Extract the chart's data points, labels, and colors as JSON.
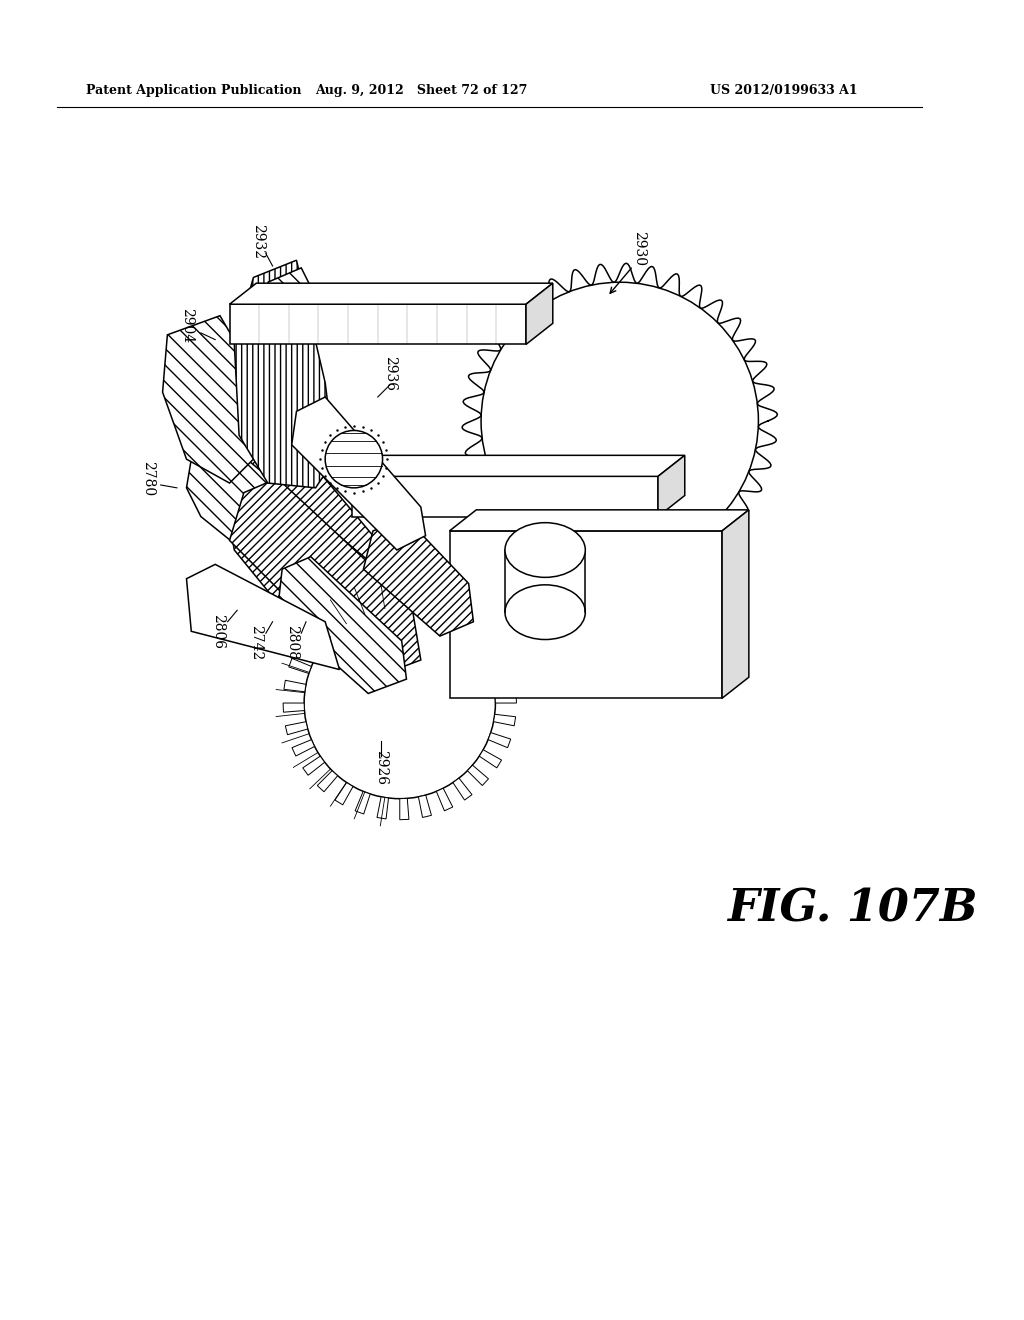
{
  "background_color": "#ffffff",
  "header_left": "Patent Application Publication",
  "header_center": "Aug. 9, 2012   Sheet 72 of 127",
  "header_right": "US 2012/0199633 A1",
  "figure_label": "FIG. 107B",
  "header_fontsize": 9,
  "fig_label_fontsize": 32,
  "label_fontsize": 10
}
